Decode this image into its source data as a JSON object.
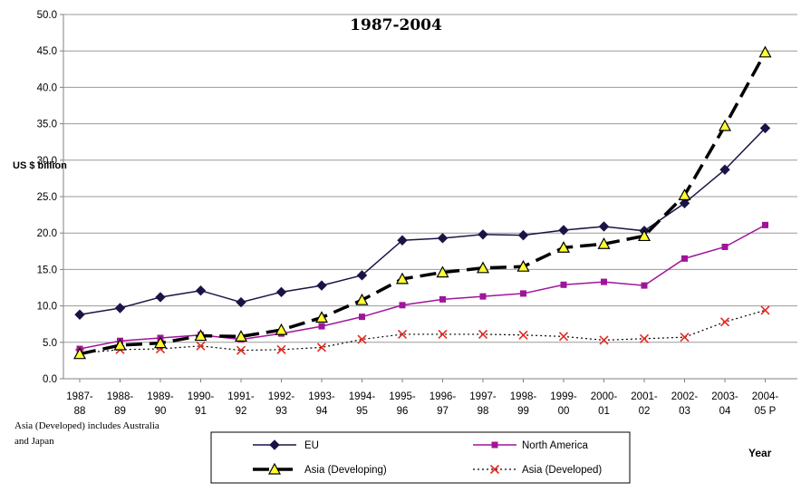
{
  "chart_data": {
    "type": "line",
    "title_fragment": "1987-2004",
    "ylabel": "US $ billion",
    "xlabel": "Year",
    "ylim": [
      0,
      50
    ],
    "yticks": [
      "0.0",
      "5.0",
      "10.0",
      "15.0",
      "20.0",
      "25.0",
      "30.0",
      "35.0",
      "40.0",
      "45.0",
      "50.0"
    ],
    "categories": [
      [
        "1987-",
        "88"
      ],
      [
        "1988-",
        "89"
      ],
      [
        "1989-",
        "90"
      ],
      [
        "1990-",
        "91"
      ],
      [
        "1991-",
        "92"
      ],
      [
        "1992-",
        "93"
      ],
      [
        "1993-",
        "94"
      ],
      [
        "1994-",
        "95"
      ],
      [
        "1995-",
        "96"
      ],
      [
        "1996-",
        "97"
      ],
      [
        "1997-",
        "98"
      ],
      [
        "1998-",
        "99"
      ],
      [
        "1999-",
        "00"
      ],
      [
        "2000-",
        "01"
      ],
      [
        "2001-",
        "02"
      ],
      [
        "2002-",
        "03"
      ],
      [
        "2003-",
        "04"
      ],
      [
        "2004-",
        "05 P"
      ]
    ],
    "series": [
      {
        "name": "EU",
        "color": "#1a1446",
        "marker": "diamond",
        "style": "solid",
        "values": [
          8.8,
          9.7,
          11.2,
          12.1,
          10.5,
          11.9,
          12.8,
          14.2,
          19.0,
          19.3,
          19.8,
          19.7,
          20.4,
          20.9,
          20.3,
          24.1,
          28.7,
          34.4
        ]
      },
      {
        "name": "North America",
        "color": "#a0149a",
        "marker": "square",
        "style": "solid",
        "values": [
          4.1,
          5.2,
          5.6,
          6.0,
          5.4,
          6.2,
          7.2,
          8.5,
          10.1,
          10.9,
          11.3,
          11.7,
          12.9,
          13.3,
          12.8,
          16.5,
          18.1,
          21.1
        ]
      },
      {
        "name": "Asia (Developing)",
        "color": "#000000",
        "marker": "triangle",
        "marker_fill": "#ffff33",
        "style": "dashed-bold",
        "values": [
          3.4,
          4.6,
          4.9,
          5.9,
          5.8,
          6.7,
          8.4,
          10.8,
          13.7,
          14.6,
          15.2,
          15.4,
          18.0,
          18.5,
          19.6,
          25.2,
          34.7,
          44.8
        ]
      },
      {
        "name": "Asia (Developed)",
        "color": "#e8281e",
        "line_color": "#000000",
        "marker": "x",
        "style": "dotted",
        "values": [
          3.5,
          4.0,
          4.1,
          4.5,
          3.9,
          4.0,
          4.3,
          5.4,
          6.1,
          6.1,
          6.1,
          6.0,
          5.8,
          5.3,
          5.5,
          5.7,
          7.8,
          9.4
        ]
      }
    ],
    "annotation": [
      "Asia (Developed) includes Australia",
      "and Japan"
    ],
    "legend": {
      "placement": "bottom",
      "columns": 2
    }
  }
}
